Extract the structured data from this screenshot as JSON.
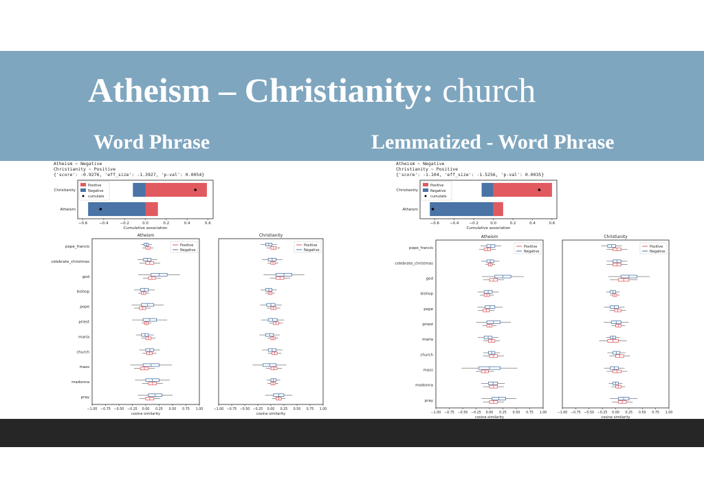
{
  "slide": {
    "title_bold": "Atheism – Christianity:",
    "title_light": " church",
    "left_heading": "Word Phrase",
    "right_heading": "Lemmatized - Word Phrase"
  },
  "colors": {
    "banner": "#7fa6bf",
    "positive": "#e05a5f",
    "negative": "#4a73a6",
    "footer": "#262626"
  },
  "chart_data": [
    {
      "panel": "left",
      "header_lines": [
        "Atheism ~ Negative",
        "Christianity ~ Positive",
        "{'score': -0.9276, 'eff_size': -1.3927, 'p-val': 0.0054}"
      ],
      "summary": {
        "type": "bar",
        "orientation": "horizontal",
        "categories": [
          "Christianity",
          "Atheism"
        ],
        "series": [
          {
            "name": "Positive",
            "values": [
              0.59,
              0.12
            ]
          },
          {
            "name": "Negative",
            "values": [
              -0.12,
              -0.55
            ]
          }
        ],
        "cumulate": [
          0.48,
          -0.43
        ],
        "xlabel": "Cumulative association",
        "xlim": [
          -0.65,
          0.65
        ],
        "xticks": [
          "−0.6",
          "−0.4",
          "−0.2",
          "0.0",
          "0.2",
          "0.4",
          "0.6"
        ],
        "legend": [
          "Positive",
          "Negative",
          "cumulate"
        ]
      },
      "boxplots": {
        "type": "boxplot",
        "words": [
          "pope_francis",
          "celebrate_christmas",
          "god",
          "bishop",
          "pope",
          "priest",
          "maria",
          "church",
          "mass",
          "madonna",
          "pray"
        ],
        "xlabel": "cosine similarity",
        "xlim": [
          -1.0,
          1.0
        ],
        "xticks": [
          "−1.00",
          "−0.75",
          "−0.50",
          "−0.25",
          "0.00",
          "0.25",
          "0.50",
          "0.75",
          "1.00"
        ],
        "legend": [
          "Positive",
          "Negative"
        ],
        "groups": [
          {
            "title": "Atheism",
            "negative": [
              [
                -0.03,
                0.05
              ],
              [
                -0.04,
                0.1
              ],
              [
                0.1,
                0.4
              ],
              [
                -0.1,
                0.05
              ],
              [
                -0.08,
                0.15
              ],
              [
                -0.05,
                0.2
              ],
              [
                -0.08,
                0.05
              ],
              [
                0.0,
                0.15
              ],
              [
                -0.05,
                0.25
              ],
              [
                0.0,
                0.25
              ],
              [
                0.05,
                0.3
              ]
            ],
            "positive": [
              [
                0.0,
                0.08
              ],
              [
                0.0,
                0.15
              ],
              [
                0.05,
                0.18
              ],
              [
                -0.08,
                0.0
              ],
              [
                -0.12,
                0.0
              ],
              [
                -0.02,
                0.05
              ],
              [
                0.0,
                0.1
              ],
              [
                0.02,
                0.12
              ],
              [
                -0.1,
                0.05
              ],
              [
                0.05,
                0.2
              ],
              [
                0.0,
                0.15
              ]
            ]
          },
          {
            "title": "Christianity",
            "negative": [
              [
                -0.1,
                0.02
              ],
              [
                -0.05,
                0.1
              ],
              [
                0.1,
                0.4
              ],
              [
                -0.1,
                0.02
              ],
              [
                -0.08,
                0.08
              ],
              [
                -0.05,
                0.12
              ],
              [
                -0.1,
                0.05
              ],
              [
                -0.05,
                0.1
              ],
              [
                -0.15,
                0.1
              ],
              [
                0.0,
                0.1
              ],
              [
                0.05,
                0.25
              ]
            ],
            "positive": [
              [
                0.0,
                0.1
              ],
              [
                0.0,
                0.08
              ],
              [
                0.1,
                0.25
              ],
              [
                -0.05,
                0.02
              ],
              [
                0.0,
                0.1
              ],
              [
                0.05,
                0.15
              ],
              [
                0.0,
                0.08
              ],
              [
                0.02,
                0.12
              ],
              [
                0.0,
                0.12
              ],
              [
                0.0,
                0.08
              ],
              [
                0.1,
                0.2
              ]
            ]
          }
        ]
      }
    },
    {
      "panel": "right",
      "header_lines": [
        "Atheism ~ Negative",
        "Christianity ~ Positive",
        "{'score': -1.104, 'eff_size': -1.5256, 'p-val': 0.0035}"
      ],
      "summary": {
        "type": "bar",
        "orientation": "horizontal",
        "categories": [
          "Christianity",
          "Atheism"
        ],
        "series": [
          {
            "name": "Positive",
            "values": [
              0.6,
              0.1
            ]
          },
          {
            "name": "Negative",
            "values": [
              -0.12,
              -0.65
            ]
          }
        ],
        "cumulate": [
          0.47,
          -0.62
        ],
        "xlabel": "Cumulative association",
        "xlim": [
          -0.75,
          0.65
        ],
        "xticks": [
          "−0.6",
          "−0.4",
          "−0.2",
          "0.0",
          "0.2",
          "0.4",
          "0.6"
        ],
        "legend": [
          "Positive",
          "Negative",
          "cumulate"
        ]
      },
      "boxplots": {
        "type": "boxplot",
        "words": [
          "pope_francis",
          "celebrate_christmas",
          "god",
          "bishop",
          "pope",
          "priest",
          "maria",
          "church",
          "mass",
          "madonna",
          "pray"
        ],
        "xlabel": "cosine similarity",
        "xlim": [
          -1.0,
          1.0
        ],
        "xticks": [
          "−1.00",
          "−0.75",
          "−0.50",
          "−0.25",
          "0.00",
          "0.25",
          "0.50",
          "0.75",
          "1.00"
        ],
        "legend": [
          "Positive",
          "Negative"
        ],
        "groups": [
          {
            "title": "Atheism",
            "negative": [
              [
                -0.05,
                0.1
              ],
              [
                -0.05,
                0.08
              ],
              [
                0.1,
                0.4
              ],
              [
                -0.1,
                0.05
              ],
              [
                -0.08,
                0.1
              ],
              [
                -0.05,
                0.2
              ],
              [
                -0.1,
                0.05
              ],
              [
                -0.02,
                0.1
              ],
              [
                -0.2,
                0.2
              ],
              [
                -0.02,
                0.15
              ],
              [
                0.05,
                0.3
              ]
            ],
            "positive": [
              [
                -0.1,
                0.02
              ],
              [
                -0.02,
                0.05
              ],
              [
                0.0,
                0.15
              ],
              [
                -0.1,
                0.0
              ],
              [
                -0.12,
                0.0
              ],
              [
                -0.05,
                0.05
              ],
              [
                -0.02,
                0.1
              ],
              [
                0.0,
                0.15
              ],
              [
                -0.15,
                -0.02
              ],
              [
                0.0,
                0.15
              ],
              [
                0.0,
                0.15
              ]
            ]
          },
          {
            "title": "Christianity",
            "negative": [
              [
                -0.15,
                0.0
              ],
              [
                -0.05,
                0.1
              ],
              [
                0.1,
                0.4
              ],
              [
                -0.1,
                0.0
              ],
              [
                -0.1,
                0.05
              ],
              [
                -0.08,
                0.1
              ],
              [
                -0.1,
                0.0
              ],
              [
                -0.05,
                0.08
              ],
              [
                -0.1,
                0.05
              ],
              [
                -0.05,
                0.05
              ],
              [
                0.05,
                0.25
              ]
            ],
            "positive": [
              [
                -0.05,
                0.1
              ],
              [
                -0.05,
                0.1
              ],
              [
                0.05,
                0.25
              ],
              [
                -0.05,
                0.02
              ],
              [
                -0.02,
                0.1
              ],
              [
                0.0,
                0.1
              ],
              [
                -0.15,
                0.05
              ],
              [
                0.0,
                0.15
              ],
              [
                -0.05,
                0.1
              ],
              [
                0.0,
                0.1
              ],
              [
                0.05,
                0.2
              ]
            ]
          }
        ]
      }
    }
  ]
}
